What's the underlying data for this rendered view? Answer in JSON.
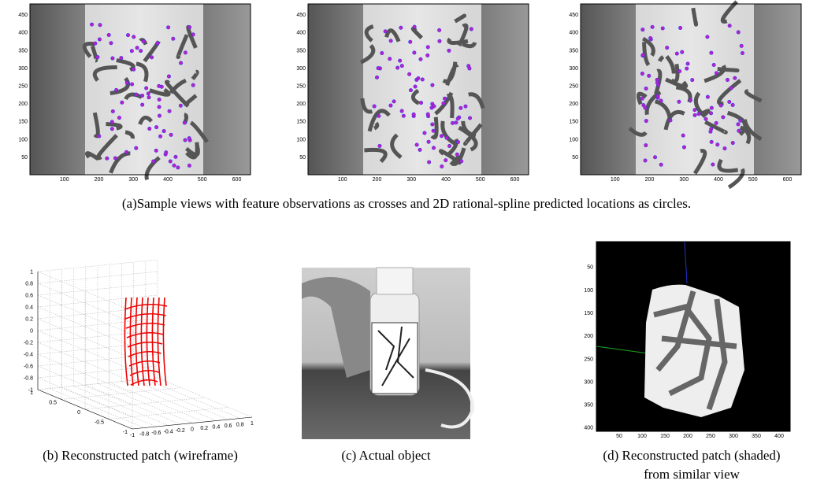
{
  "top_panels": [
    {
      "x_ticks": [
        "100",
        "200",
        "300",
        "400",
        "500",
        "600"
      ],
      "y_ticks": [
        "50",
        "100",
        "150",
        "200",
        "250",
        "300",
        "350",
        "400",
        "450"
      ]
    },
    {
      "x_ticks": [
        "100",
        "200",
        "300",
        "400",
        "500",
        "600"
      ],
      "y_ticks": [
        "50",
        "100",
        "150",
        "200",
        "250",
        "300",
        "350",
        "400",
        "450"
      ]
    },
    {
      "x_ticks": [
        "100",
        "200",
        "300",
        "400",
        "500",
        "600"
      ],
      "y_ticks": [
        "50",
        "100",
        "150",
        "200",
        "250",
        "300",
        "350",
        "400",
        "450"
      ]
    }
  ],
  "caption_a": "(a)Sample views with feature observations as crosses and 2D rational-spline predicted locations as circles.",
  "panel_b": {
    "z_ticks": [
      "1",
      "0.8",
      "0.6",
      "0.4",
      "0.2",
      "0",
      "-0.2",
      "-0.4",
      "-0.6",
      "-0.8",
      "-1"
    ],
    "y_ticks": [
      "1",
      "0.5",
      "0",
      "-0.5",
      "-1"
    ],
    "x_ticks": [
      "-1",
      "-0.8",
      "-0.6",
      "-0.4",
      "-0.2",
      "0",
      "0.2",
      "0.4",
      "0.6",
      "0.8",
      "1"
    ],
    "caption": "(b) Reconstructed patch (wireframe)"
  },
  "panel_c": {
    "caption": "(c) Actual object"
  },
  "panel_d": {
    "y_ticks": [
      "50",
      "100",
      "150",
      "200",
      "250",
      "300",
      "350",
      "400"
    ],
    "x_ticks": [
      "50",
      "100",
      "150",
      "200",
      "250",
      "300",
      "350",
      "400"
    ],
    "caption": [
      "(d) Reconstructed patch (shaded)",
      "from similar view"
    ]
  }
}
